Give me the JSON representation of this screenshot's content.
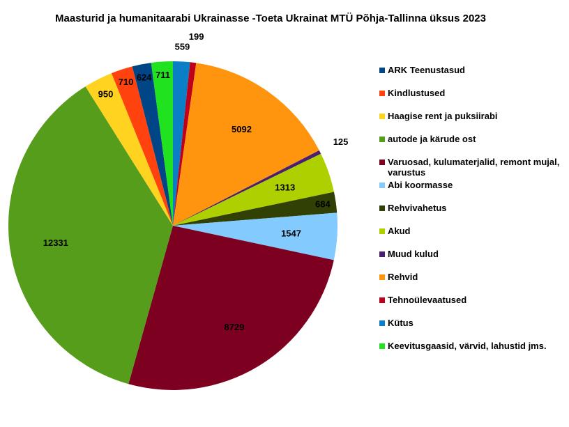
{
  "chart_data": {
    "type": "pie",
    "title": "Maasturid ja humanitaarabi Ukrainasse -Toeta Ukrainat MTÜ Põhja-Tallinna üksus 2023",
    "start_angle_deg": -90,
    "legend_position": "right",
    "slices": [
      {
        "label": "Kütus",
        "value": 559,
        "color": "#0a7fc6"
      },
      {
        "label": "Tehnoülevaatused",
        "value": 199,
        "color": "#c0001a"
      },
      {
        "label": "Rehvid",
        "value": 5092,
        "color": "#ff950e"
      },
      {
        "label": "Muud kulud",
        "value": 125,
        "color": "#4b1f6f"
      },
      {
        "label": "Akud",
        "value": 1313,
        "color": "#aecf00"
      },
      {
        "label": "Rehvivahetus",
        "value": 684,
        "color": "#314004"
      },
      {
        "label": "Abi koormasse",
        "value": 1547,
        "color": "#83caff"
      },
      {
        "label": "Varuosad, kulumaterjalid, remont mujal, varustus",
        "value": 8729,
        "color": "#7e0021"
      },
      {
        "label": "autode ja kärude ost",
        "value": 12331,
        "color": "#579d1c"
      },
      {
        "label": "Haagise rent ja puksiirabi",
        "value": 950,
        "color": "#ffd320"
      },
      {
        "label": "Kindlustused",
        "value": 710,
        "color": "#ff420e"
      },
      {
        "label": "ARK Teenustasud",
        "value": 624,
        "color": "#004586"
      },
      {
        "label": "Keevitusgaasid, värvid, lahustid jms.",
        "value": 711,
        "color": "#21e21e"
      }
    ],
    "legend": [
      {
        "label": "ARK Teenustasud",
        "color": "#004586"
      },
      {
        "label": "Kindlustused",
        "color": "#ff420e"
      },
      {
        "label": "Haagise rent ja puksiirabi",
        "color": "#ffd320"
      },
      {
        "label": "autode ja kärude ost",
        "color": "#579d1c"
      },
      {
        "label": "Varuosad, kulumaterjalid, remont mujal, varustus",
        "color": "#7e0021"
      },
      {
        "label": "Abi koormasse",
        "color": "#83caff"
      },
      {
        "label": "Rehvivahetus",
        "color": "#314004"
      },
      {
        "label": "Akud",
        "color": "#aecf00"
      },
      {
        "label": "Muud kulud",
        "color": "#4b1f6f"
      },
      {
        "label": "Rehvid",
        "color": "#ff950e"
      },
      {
        "label": "Tehnoülevaatused",
        "color": "#c0001a"
      },
      {
        "label": "Kütus",
        "color": "#0a7fc6"
      },
      {
        "label": "Keevitusgaasid, värvid, lahustid jms.",
        "color": "#21e21e"
      }
    ]
  }
}
